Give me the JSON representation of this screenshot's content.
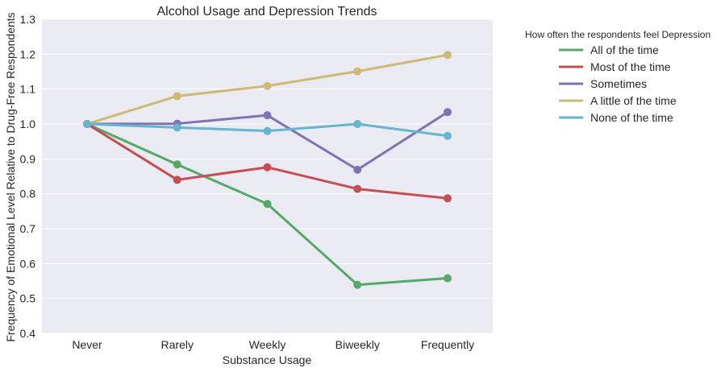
{
  "chart_data": {
    "type": "line",
    "title": "Alcohol Usage and Depression Trends",
    "xlabel": "Substance Usage",
    "ylabel": "Frequency of Emotional Level Relative to Drug-Free Respondents",
    "categories": [
      "Never",
      "Rarely",
      "Weekly",
      "Biweekly",
      "Frequently"
    ],
    "ylim": [
      0.4,
      1.3
    ],
    "yticks": [
      "0.4",
      "0.5",
      "0.6",
      "0.7",
      "0.8",
      "0.9",
      "1.0",
      "1.1",
      "1.2",
      "1.3"
    ],
    "grid": true,
    "legend": {
      "title": "How often the respondents feel Depression",
      "placement": "outside-top-right"
    },
    "series": [
      {
        "name": "All of the time",
        "color": "#55a868",
        "values": [
          1.0,
          0.884,
          0.771,
          0.539,
          0.558
        ]
      },
      {
        "name": "Most of the time",
        "color": "#c44e52",
        "values": [
          1.0,
          0.84,
          0.876,
          0.814,
          0.787
        ]
      },
      {
        "name": "Sometimes",
        "color": "#8172b2",
        "values": [
          1.0,
          1.001,
          1.025,
          0.869,
          1.034
        ]
      },
      {
        "name": "A little of the time",
        "color": "#ccb974",
        "values": [
          1.0,
          1.08,
          1.109,
          1.151,
          1.198
        ]
      },
      {
        "name": "None of the time",
        "color": "#64b5cd",
        "values": [
          1.0,
          0.99,
          0.98,
          1.0,
          0.966
        ]
      }
    ]
  }
}
